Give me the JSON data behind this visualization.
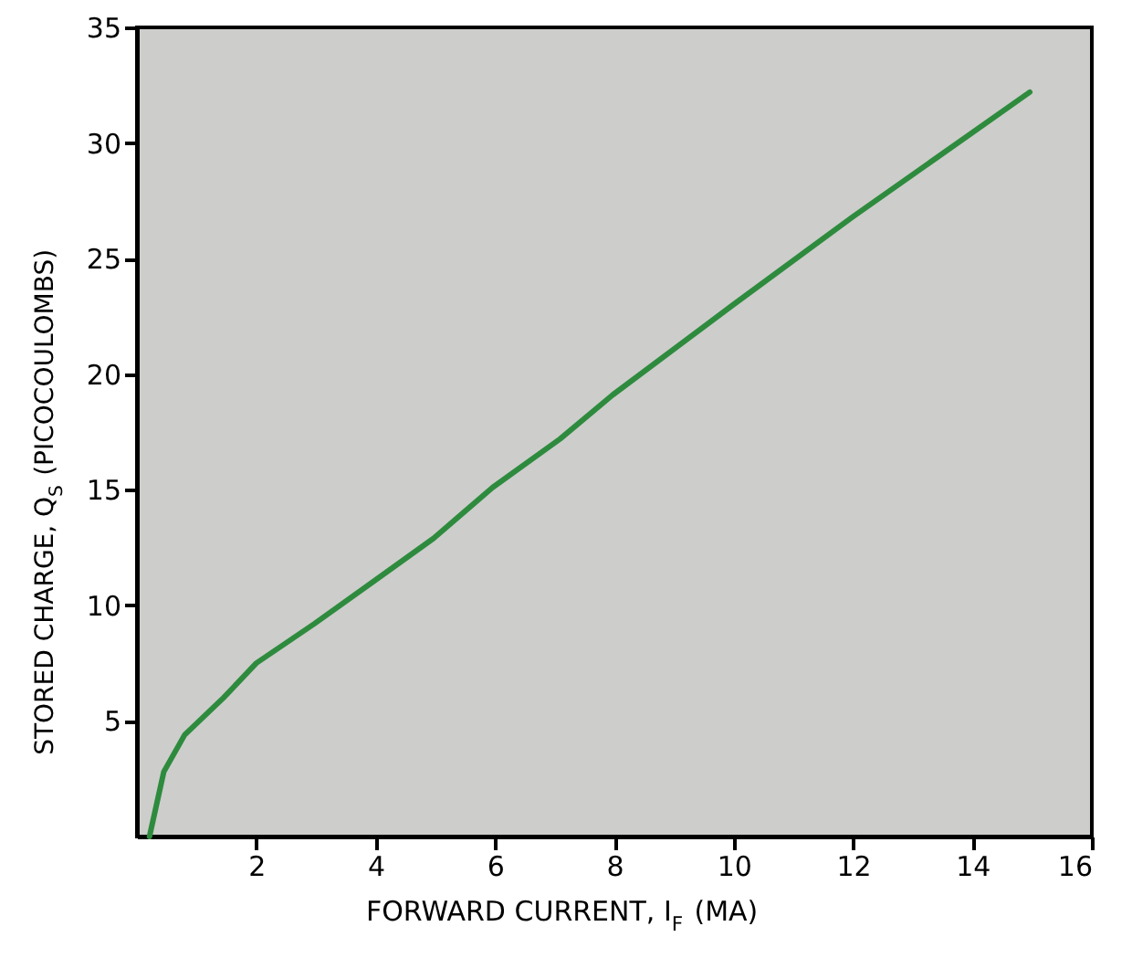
{
  "chart_data": {
    "type": "line",
    "xlabel": "FORWARD CURRENT, I$_{F}$ (MA)",
    "ylabel": "STORED CHARGE, Q$_{S}$ (PICOCOULOMBS)",
    "x": [
      0.21,
      0.45,
      0.8,
      1.45,
      2.0,
      2.97,
      4.0,
      4.97,
      5.96,
      7.09,
      7.97,
      9.99,
      11.99,
      13.97,
      14.96
    ],
    "series": [
      {
        "color": "#2e8b3e",
        "values": [
          0,
          2.8,
          4.4,
          6.0,
          7.5,
          9.2,
          11.1,
          12.9,
          15.1,
          17.2,
          19.1,
          23.0,
          26.8,
          30.4,
          32.2
        ]
      }
    ],
    "xlim": [
      0,
      16
    ],
    "ylim": [
      0,
      35
    ],
    "xticks": [
      2,
      4,
      6,
      8,
      10,
      12,
      14,
      16
    ],
    "yticks": [
      5,
      10,
      15,
      20,
      25,
      30,
      35
    ],
    "grid": false,
    "marker": "none",
    "line_style": "solid"
  }
}
